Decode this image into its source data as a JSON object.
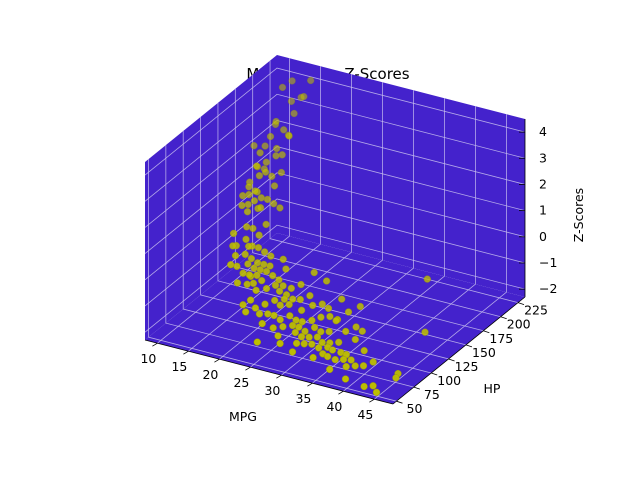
{
  "chart_data": {
    "type": "scatter",
    "projection": "3d",
    "title": "MPG v. HP v. Z-Scores",
    "xlabel": "MPG",
    "ylabel": "HP",
    "zlabel": "Z-Scores",
    "xlim": [
      8,
      48
    ],
    "ylim": [
      45,
      235
    ],
    "zlim": [
      -2.3,
      4.5
    ],
    "x_ticks": [
      "10",
      "15",
      "20",
      "25",
      "30",
      "35",
      "40",
      "45"
    ],
    "y_ticks": [
      "50",
      "75",
      "100",
      "125",
      "150",
      "175",
      "200",
      "225"
    ],
    "z_ticks": [
      "−2",
      "−1",
      "0",
      "1",
      "2",
      "3",
      "4"
    ],
    "grid": true,
    "pane_color": "#4422cc",
    "marker_color": "#bfbf00",
    "points": [
      {
        "x": 9,
        "y": 193,
        "z": 2.0
      },
      {
        "x": 10,
        "y": 200,
        "z": 1.9
      },
      {
        "x": 10,
        "y": 215,
        "z": 2.4
      },
      {
        "x": 11,
        "y": 180,
        "z": 1.6
      },
      {
        "x": 11,
        "y": 190,
        "z": 1.3
      },
      {
        "x": 12,
        "y": 150,
        "z": 1.2
      },
      {
        "x": 12,
        "y": 160,
        "z": 1.5
      },
      {
        "x": 12,
        "y": 170,
        "z": 1.9
      },
      {
        "x": 12,
        "y": 175,
        "z": 2.3
      },
      {
        "x": 12,
        "y": 190,
        "z": 2.6
      },
      {
        "x": 12,
        "y": 198,
        "z": 3.0
      },
      {
        "x": 13,
        "y": 140,
        "z": 1.1
      },
      {
        "x": 13,
        "y": 150,
        "z": 1.3
      },
      {
        "x": 13,
        "y": 150,
        "z": 1.6
      },
      {
        "x": 13,
        "y": 165,
        "z": 1.7
      },
      {
        "x": 13,
        "y": 175,
        "z": 2.0
      },
      {
        "x": 13,
        "y": 190,
        "z": 2.2
      },
      {
        "x": 13,
        "y": 215,
        "z": 3.0
      },
      {
        "x": 13,
        "y": 225,
        "z": 3.4
      },
      {
        "x": 14,
        "y": 150,
        "z": 1.5
      },
      {
        "x": 14,
        "y": 153,
        "z": 1.4
      },
      {
        "x": 14,
        "y": 140,
        "z": 1.2
      },
      {
        "x": 14,
        "y": 165,
        "z": 1.9
      },
      {
        "x": 14,
        "y": 198,
        "z": 2.6
      },
      {
        "x": 14,
        "y": 220,
        "z": 3.6
      },
      {
        "x": 14,
        "y": 230,
        "z": 4.0
      },
      {
        "x": 15,
        "y": 110,
        "z": 0.8
      },
      {
        "x": 15,
        "y": 130,
        "z": 1.2
      },
      {
        "x": 15,
        "y": 140,
        "z": 1.4
      },
      {
        "x": 15,
        "y": 145,
        "z": 1.0
      },
      {
        "x": 15,
        "y": 150,
        "z": 1.3
      },
      {
        "x": 15,
        "y": 165,
        "z": 1.8
      },
      {
        "x": 15,
        "y": 180,
        "z": 2.3
      },
      {
        "x": 15,
        "y": 190,
        "z": 2.8
      },
      {
        "x": 16,
        "y": 100,
        "z": 0.6
      },
      {
        "x": 16,
        "y": 105,
        "z": 0.5
      },
      {
        "x": 16,
        "y": 120,
        "z": 0.9
      },
      {
        "x": 16,
        "y": 140,
        "z": 1.2
      },
      {
        "x": 16,
        "y": 150,
        "z": 1.3
      },
      {
        "x": 16,
        "y": 170,
        "z": 1.9
      },
      {
        "x": 17,
        "y": 110,
        "z": 0.7
      },
      {
        "x": 17,
        "y": 120,
        "z": 0.9
      },
      {
        "x": 17,
        "y": 150,
        "z": 1.2
      },
      {
        "x": 18,
        "y": 88,
        "z": 0.2
      },
      {
        "x": 18,
        "y": 100,
        "z": 0.4
      },
      {
        "x": 18,
        "y": 105,
        "z": 0.6
      },
      {
        "x": 18,
        "y": 110,
        "z": 0.5
      },
      {
        "x": 18,
        "y": 130,
        "z": 0.9
      },
      {
        "x": 18,
        "y": 150,
        "z": 1.1
      },
      {
        "x": 19,
        "y": 88,
        "z": 0.0
      },
      {
        "x": 19,
        "y": 95,
        "z": 0.2
      },
      {
        "x": 19,
        "y": 100,
        "z": 0.3
      },
      {
        "x": 19,
        "y": 110,
        "z": 0.5
      },
      {
        "x": 20,
        "y": 85,
        "z": -0.3
      },
      {
        "x": 20,
        "y": 88,
        "z": 0.0
      },
      {
        "x": 20,
        "y": 90,
        "z": -0.1
      },
      {
        "x": 20,
        "y": 95,
        "z": 0.1
      },
      {
        "x": 20,
        "y": 100,
        "z": 0.2
      },
      {
        "x": 20,
        "y": 110,
        "z": 0.4
      },
      {
        "x": 21,
        "y": 70,
        "z": -0.7
      },
      {
        "x": 21,
        "y": 85,
        "z": -0.2
      },
      {
        "x": 21,
        "y": 90,
        "z": 0.0
      },
      {
        "x": 21,
        "y": 95,
        "z": 0.1
      },
      {
        "x": 21,
        "y": 110,
        "z": 0.3
      },
      {
        "x": 22,
        "y": 72,
        "z": -0.5
      },
      {
        "x": 22,
        "y": 80,
        "z": -0.3
      },
      {
        "x": 22,
        "y": 88,
        "z": -0.1
      },
      {
        "x": 22,
        "y": 95,
        "z": 0.1
      },
      {
        "x": 22,
        "y": 100,
        "z": 0.2
      },
      {
        "x": 23,
        "y": 70,
        "z": -0.7
      },
      {
        "x": 23,
        "y": 86,
        "z": -0.3
      },
      {
        "x": 23,
        "y": 95,
        "z": 0.0
      },
      {
        "x": 24,
        "y": 67,
        "z": -0.8
      },
      {
        "x": 24,
        "y": 75,
        "z": -0.6
      },
      {
        "x": 24,
        "y": 90,
        "z": -0.2
      },
      {
        "x": 24,
        "y": 95,
        "z": -0.1
      },
      {
        "x": 25,
        "y": 70,
        "z": -0.8
      },
      {
        "x": 25,
        "y": 80,
        "z": -0.5
      },
      {
        "x": 25,
        "y": 87,
        "z": -0.3
      },
      {
        "x": 25,
        "y": 92,
        "z": -0.2
      },
      {
        "x": 26,
        "y": 46,
        "z": -1.3
      },
      {
        "x": 26,
        "y": 70,
        "z": -0.8
      },
      {
        "x": 26,
        "y": 79,
        "z": -0.6
      },
      {
        "x": 26,
        "y": 88,
        "z": -0.4
      },
      {
        "x": 27,
        "y": 60,
        "z": -1.0
      },
      {
        "x": 27,
        "y": 70,
        "z": -0.9
      },
      {
        "x": 27,
        "y": 83,
        "z": -0.6
      },
      {
        "x": 27,
        "y": 88,
        "z": -0.5
      },
      {
        "x": 28,
        "y": 65,
        "z": -1.0
      },
      {
        "x": 28,
        "y": 75,
        "z": -0.8
      },
      {
        "x": 28,
        "y": 90,
        "z": -0.5
      },
      {
        "x": 29,
        "y": 52,
        "z": -1.3
      },
      {
        "x": 29,
        "y": 70,
        "z": -1.0
      },
      {
        "x": 29,
        "y": 83,
        "z": -0.7
      },
      {
        "x": 30,
        "y": 65,
        "z": -1.1
      },
      {
        "x": 30,
        "y": 70,
        "z": -1.0
      },
      {
        "x": 30,
        "y": 75,
        "z": -0.9
      },
      {
        "x": 30,
        "y": 90,
        "z": -0.6
      },
      {
        "x": 31,
        "y": 58,
        "z": -1.3
      },
      {
        "x": 31,
        "y": 65,
        "z": -1.2
      },
      {
        "x": 31,
        "y": 70,
        "z": -1.1
      },
      {
        "x": 31,
        "y": 80,
        "z": -0.9
      },
      {
        "x": 32,
        "y": 60,
        "z": -1.3
      },
      {
        "x": 32,
        "y": 67,
        "z": -1.2
      },
      {
        "x": 32,
        "y": 75,
        "z": -1.0
      },
      {
        "x": 32,
        "y": 84,
        "z": -0.8
      },
      {
        "x": 33,
        "y": 62,
        "z": -1.3
      },
      {
        "x": 33,
        "y": 70,
        "z": -1.2
      },
      {
        "x": 33,
        "y": 75,
        "z": -1.1
      },
      {
        "x": 33,
        "y": 105,
        "z": -0.5
      },
      {
        "x": 34,
        "y": 63,
        "z": -1.4
      },
      {
        "x": 34,
        "y": 68,
        "z": -1.3
      },
      {
        "x": 34,
        "y": 78,
        "z": -1.1
      },
      {
        "x": 34,
        "y": 88,
        "z": -0.9
      },
      {
        "x": 35,
        "y": 60,
        "z": -1.5
      },
      {
        "x": 35,
        "y": 67,
        "z": -1.4
      },
      {
        "x": 35,
        "y": 70,
        "z": -1.3
      },
      {
        "x": 36,
        "y": 58,
        "z": -1.5
      },
      {
        "x": 36,
        "y": 65,
        "z": -1.4
      },
      {
        "x": 36,
        "y": 74,
        "z": -1.3
      },
      {
        "x": 36,
        "y": 84,
        "z": -1.1
      },
      {
        "x": 37,
        "y": 60,
        "z": -1.6
      },
      {
        "x": 37,
        "y": 68,
        "z": -1.5
      },
      {
        "x": 37,
        "y": 90,
        "z": -1.0
      },
      {
        "x": 38,
        "y": 63,
        "z": -1.6
      },
      {
        "x": 38,
        "y": 67,
        "z": -1.5
      },
      {
        "x": 38,
        "y": 90,
        "z": -1.1
      },
      {
        "x": 39,
        "y": 58,
        "z": -1.7
      },
      {
        "x": 39,
        "y": 65,
        "z": -1.6
      },
      {
        "x": 40,
        "y": 48,
        "z": -1.9
      },
      {
        "x": 40,
        "y": 62,
        "z": -1.7
      },
      {
        "x": 41,
        "y": 65,
        "z": -1.7
      },
      {
        "x": 43,
        "y": 48,
        "z": -2.0
      },
      {
        "x": 44,
        "y": 52,
        "z": -2.0
      },
      {
        "x": 45,
        "y": 48,
        "z": -2.1
      },
      {
        "x": 46,
        "y": 67,
        "z": -1.9
      },
      {
        "x": 46,
        "y": 70,
        "z": -1.8
      },
      {
        "x": 44,
        "y": 130,
        "z": 0.4
      },
      {
        "x": 47,
        "y": 100,
        "z": -0.8
      },
      {
        "x": 28,
        "y": 110,
        "z": 0.1
      },
      {
        "x": 30,
        "y": 110,
        "z": -0.1
      },
      {
        "x": 35,
        "y": 97,
        "z": -0.7
      },
      {
        "x": 33,
        "y": 88,
        "z": -0.8
      },
      {
        "x": 29,
        "y": 95,
        "z": -0.4
      },
      {
        "x": 27,
        "y": 100,
        "z": -0.2
      },
      {
        "x": 24,
        "y": 105,
        "z": 0.1
      },
      {
        "x": 23,
        "y": 110,
        "z": 0.3
      },
      {
        "x": 26,
        "y": 95,
        "z": -0.3
      },
      {
        "x": 31,
        "y": 95,
        "z": -0.6
      },
      {
        "x": 34,
        "y": 90,
        "z": -0.9
      },
      {
        "x": 17,
        "y": 95,
        "z": 0.4
      },
      {
        "x": 17,
        "y": 88,
        "z": 0.2
      },
      {
        "x": 19,
        "y": 80,
        "z": -0.2
      },
      {
        "x": 22,
        "y": 65,
        "z": -0.8
      },
      {
        "x": 25,
        "y": 62,
        "z": -1.0
      },
      {
        "x": 28,
        "y": 58,
        "z": -1.2
      },
      {
        "x": 36,
        "y": 105,
        "z": -0.6
      },
      {
        "x": 38,
        "y": 80,
        "z": -1.2
      },
      {
        "x": 40,
        "y": 75,
        "z": -1.4
      },
      {
        "x": 42,
        "y": 70,
        "z": -1.6
      },
      {
        "x": 34,
        "y": 55,
        "z": -1.6
      },
      {
        "x": 31,
        "y": 52,
        "z": -1.5
      },
      {
        "x": 37,
        "y": 52,
        "z": -1.8
      },
      {
        "x": 29,
        "y": 75,
        "z": -0.9
      },
      {
        "x": 26,
        "y": 85,
        "z": -0.5
      },
      {
        "x": 32,
        "y": 95,
        "z": -0.7
      },
      {
        "x": 21,
        "y": 100,
        "z": 0.2
      },
      {
        "x": 18,
        "y": 120,
        "z": 0.7
      },
      {
        "x": 16,
        "y": 160,
        "z": 1.6
      },
      {
        "x": 14,
        "y": 180,
        "z": 2.2
      },
      {
        "x": 13,
        "y": 200,
        "z": 2.7
      },
      {
        "x": 12,
        "y": 220,
        "z": 3.3
      },
      {
        "x": 11,
        "y": 230,
        "z": 3.8
      },
      {
        "x": 10,
        "y": 225,
        "z": 3.6
      }
    ]
  }
}
